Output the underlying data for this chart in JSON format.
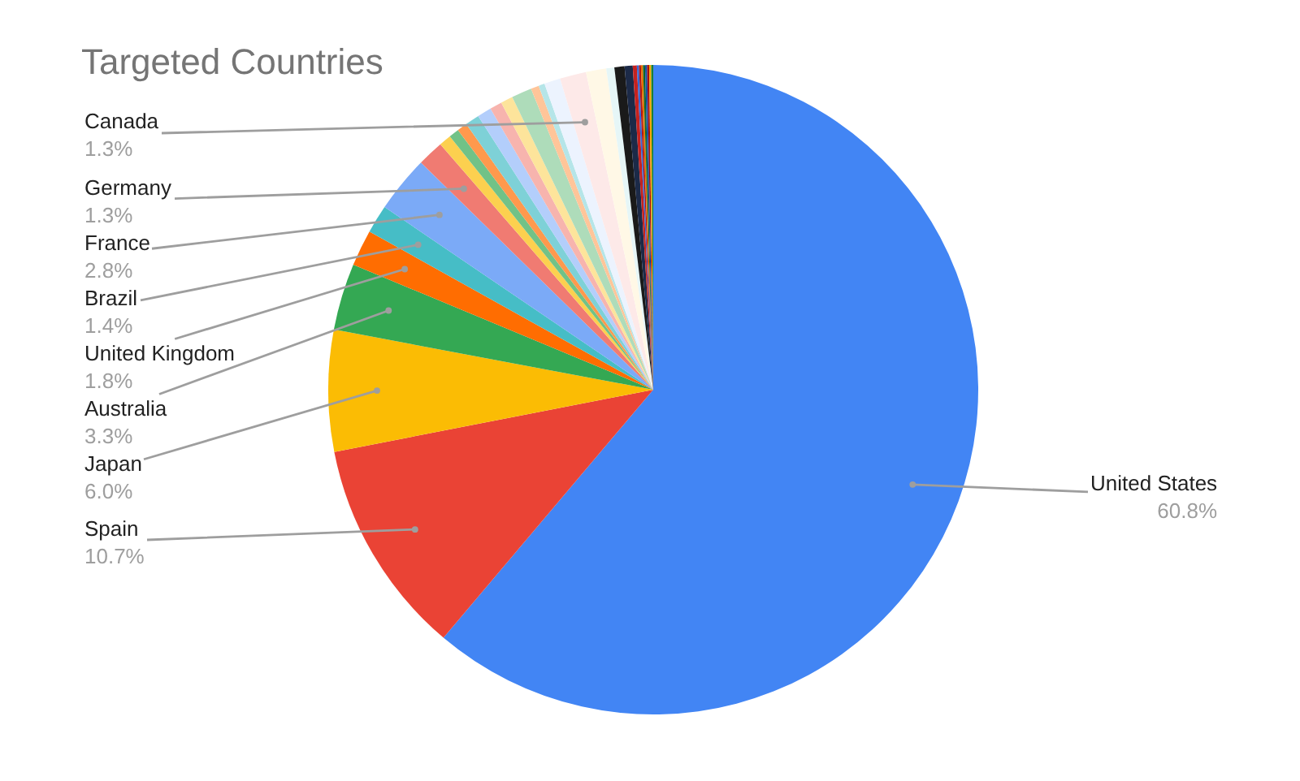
{
  "chart_data": {
    "type": "pie",
    "title": "Targeted Countries",
    "categories": [
      "United States",
      "Spain",
      "Japan",
      "Australia",
      "United Kingdom",
      "Brazil",
      "France",
      "Germany",
      null,
      null,
      null,
      null,
      null,
      null,
      null,
      null,
      null,
      null,
      null,
      "Canada",
      null,
      null,
      null,
      null,
      null,
      null,
      null,
      null,
      null,
      null,
      null,
      null,
      null
    ],
    "values": [
      60.8,
      10.7,
      6.0,
      3.3,
      1.8,
      1.4,
      2.8,
      1.3,
      0.6,
      0.5,
      0.5,
      0.7,
      0.7,
      0.6,
      0.6,
      1.0,
      0.4,
      0.3,
      0.8,
      1.3,
      1.0,
      0.4,
      0.5,
      0.4,
      0.2,
      0.1,
      0.1,
      0.1,
      0.1,
      0.1,
      0.1,
      0.1,
      0.1
    ],
    "value_labels": [
      "60.8%",
      "10.7%",
      "6.0%",
      "3.3%",
      "1.8%",
      "1.4%",
      "2.8%",
      "1.3%",
      null,
      null,
      null,
      null,
      null,
      null,
      null,
      null,
      null,
      null,
      null,
      "1.3%",
      null,
      null,
      null,
      null,
      null,
      null,
      null,
      null,
      null,
      null,
      null,
      null,
      null
    ],
    "colors": [
      "#4285f4",
      "#ea4335",
      "#fbbc04",
      "#34a853",
      "#ff6d01",
      "#46bdc6",
      "#7baaf7",
      "#f07b72",
      "#fcd04f",
      "#71c287",
      "#ff994d",
      "#7ed1d7",
      "#b3cefb",
      "#f7b4ae",
      "#fde49b",
      "#aedcba",
      "#ffc599",
      "#b5e5e8",
      "#ecf3fe",
      "#fde9e8",
      "#fff8e6",
      "#e6f6f7",
      "#1a1a1a",
      "#1c2a48",
      "#c5221f",
      "#3367d6",
      "#b31412",
      "#e37400",
      "#0d652d",
      "#174ea6",
      "#a50e0e",
      "#f9ab00",
      "#188038"
    ],
    "legend": false
  }
}
